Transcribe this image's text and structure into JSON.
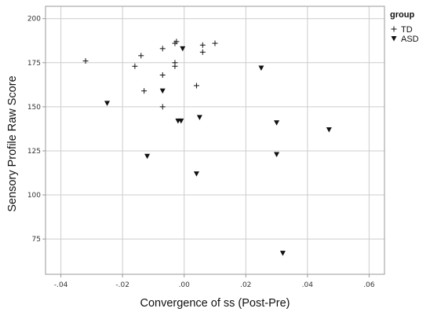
{
  "chart_data": {
    "type": "scatter",
    "title": "",
    "xlabel": "Convergence of ss (Post-Pre)",
    "ylabel": "Sensory Profile Raw Score",
    "xlim": [
      -0.045,
      0.065
    ],
    "ylim": [
      55,
      207
    ],
    "xticks": [
      -0.04,
      -0.02,
      0.0,
      0.02,
      0.04,
      0.06
    ],
    "xtick_labels": [
      "-.04",
      "-.02",
      ".00",
      ".02",
      ".04",
      ".06"
    ],
    "yticks": [
      75,
      100,
      125,
      150,
      175,
      200
    ],
    "ytick_labels": [
      "75",
      "100",
      "125",
      "150",
      "175",
      "200"
    ],
    "grid": true,
    "legend": {
      "title": "group",
      "position": "top-right"
    },
    "colors": {
      "marker": "#111111",
      "grid": "#cccccc",
      "frame": "#999999"
    },
    "series": [
      {
        "name": "TD",
        "marker": "plus",
        "points": [
          [
            -0.032,
            176
          ],
          [
            -0.016,
            173
          ],
          [
            -0.014,
            179
          ],
          [
            -0.007,
            183
          ],
          [
            -0.003,
            186
          ],
          [
            -0.0025,
            187
          ],
          [
            0.006,
            185
          ],
          [
            0.01,
            186
          ],
          [
            -0.013,
            159
          ],
          [
            -0.007,
            168
          ],
          [
            -0.003,
            173
          ],
          [
            -0.003,
            175
          ],
          [
            0.006,
            181
          ],
          [
            0.004,
            162
          ],
          [
            -0.007,
            150
          ]
        ]
      },
      {
        "name": "ASD",
        "marker": "triangle-down",
        "points": [
          [
            -0.025,
            152
          ],
          [
            -0.012,
            122
          ],
          [
            -0.007,
            159
          ],
          [
            -0.002,
            142
          ],
          [
            -0.001,
            142
          ],
          [
            -0.0005,
            183
          ],
          [
            0.005,
            144
          ],
          [
            0.004,
            112
          ],
          [
            0.025,
            172
          ],
          [
            0.03,
            141
          ],
          [
            0.03,
            123
          ],
          [
            0.047,
            137
          ],
          [
            0.032,
            67
          ]
        ]
      }
    ]
  }
}
